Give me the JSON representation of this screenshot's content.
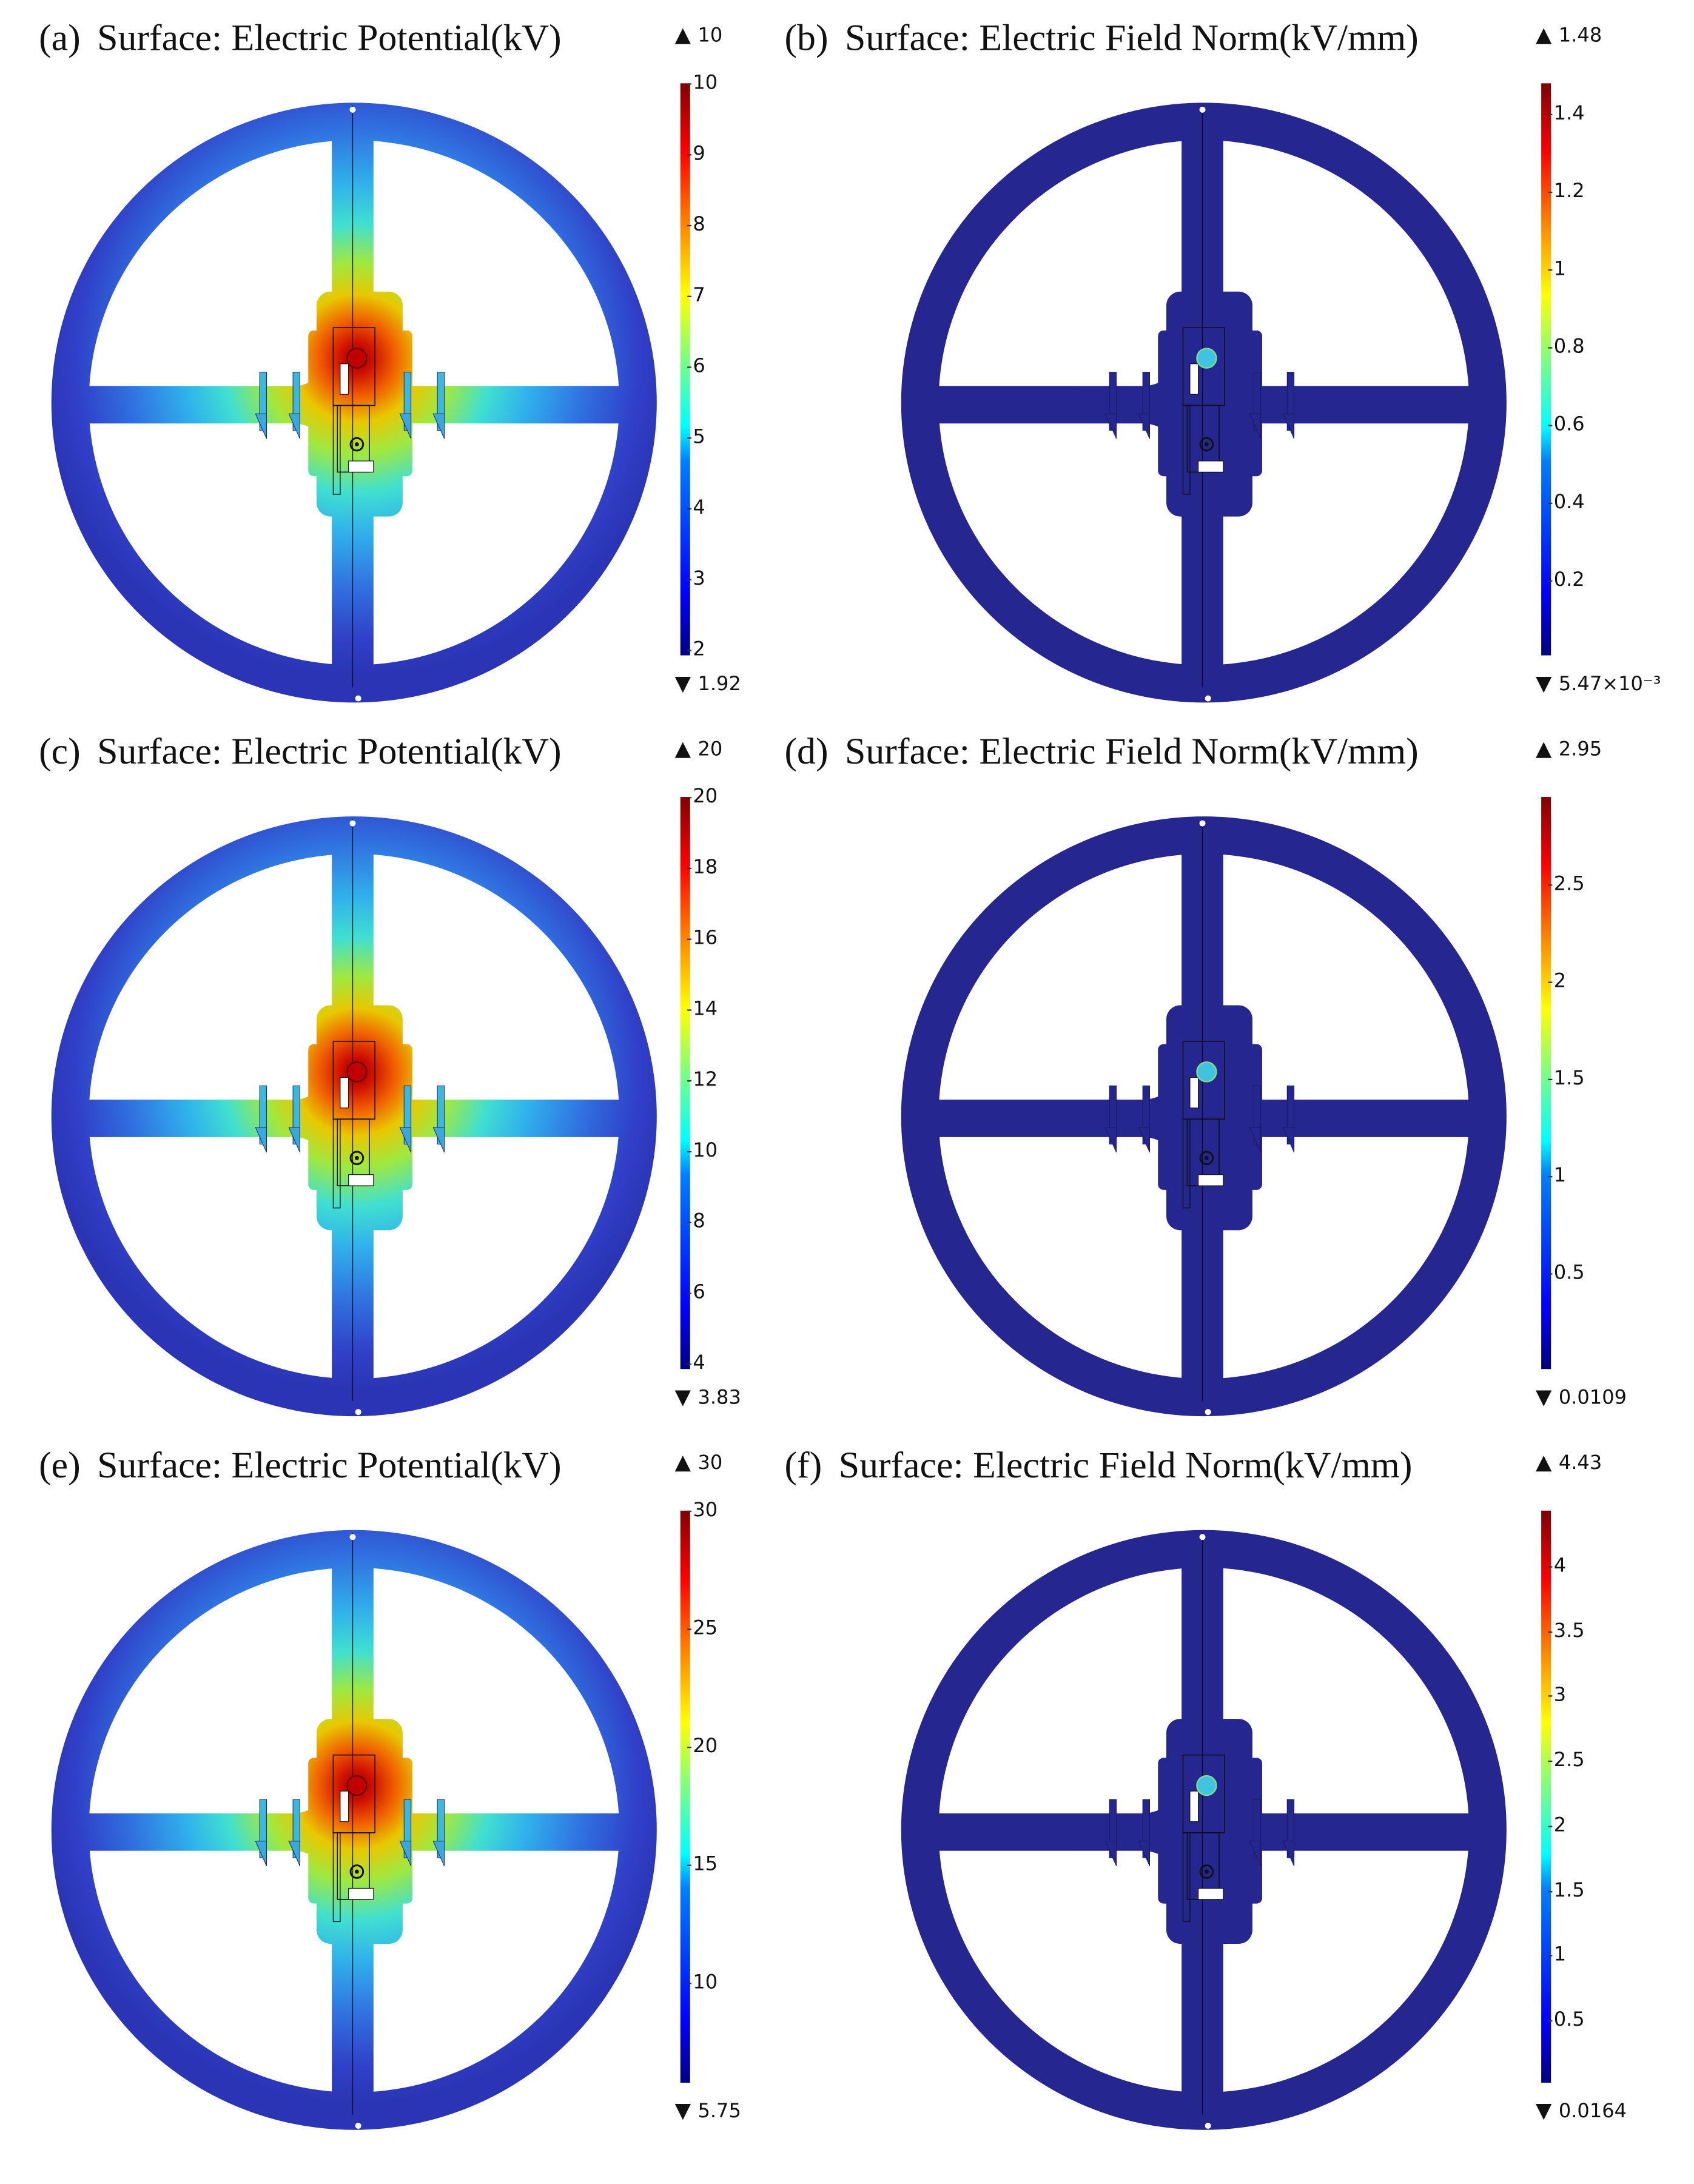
{
  "figure": {
    "panels": [
      {
        "label": "(a)",
        "title": "Surface: Electric Potential(kV)",
        "quantity": "potential",
        "colorbar": {
          "max_label": "10",
          "min_label": "1.92",
          "max": 10,
          "min": 1.92,
          "ticks": [
            "2",
            "3",
            "4",
            "5",
            "6",
            "7",
            "8",
            "9",
            "10"
          ]
        }
      },
      {
        "label": "(b)",
        "title": "Surface: Electric Field Norm(kV/mm)",
        "quantity": "field",
        "colorbar": {
          "max_label": "1.48",
          "min_label": "5.47×10⁻³",
          "max": 1.48,
          "min": 0.00547,
          "ticks": [
            "0.2",
            "0.4",
            "0.6",
            "0.8",
            "1",
            "1.2",
            "1.4"
          ]
        }
      },
      {
        "label": "(c)",
        "title": "Surface: Electric Potential(kV)",
        "quantity": "potential",
        "colorbar": {
          "max_label": "20",
          "min_label": "3.83",
          "max": 20,
          "min": 3.83,
          "ticks": [
            "4",
            "6",
            "8",
            "10",
            "12",
            "14",
            "16",
            "18",
            "20"
          ]
        }
      },
      {
        "label": "(d)",
        "title": "Surface: Electric Field Norm(kV/mm)",
        "quantity": "field",
        "colorbar": {
          "max_label": "2.95",
          "min_label": "0.0109",
          "max": 2.95,
          "min": 0.0109,
          "ticks": [
            "0.5",
            "1",
            "1.5",
            "2",
            "2.5"
          ]
        }
      },
      {
        "label": "(e)",
        "title": "Surface: Electric Potential(kV)",
        "quantity": "potential",
        "colorbar": {
          "max_label": "30",
          "min_label": "5.75",
          "max": 30,
          "min": 5.75,
          "ticks": [
            "10",
            "15",
            "20",
            "25",
            "30"
          ]
        }
      },
      {
        "label": "(f)",
        "title": "Surface: Electric Field Norm(kV/mm)",
        "quantity": "field",
        "colorbar": {
          "max_label": "4.43",
          "min_label": "0.0164",
          "max": 4.43,
          "min": 0.0164,
          "ticks": [
            "0.5",
            "1",
            "1.5",
            "2",
            "2.5",
            "3",
            "3.5",
            "4"
          ]
        }
      }
    ],
    "colormap": "jet",
    "colors": {
      "potential_low": "#2d3cc0",
      "field_background": "#25268f",
      "hotspot_potential": "#c00000",
      "hotspot_field": "#3fc3e0"
    }
  }
}
